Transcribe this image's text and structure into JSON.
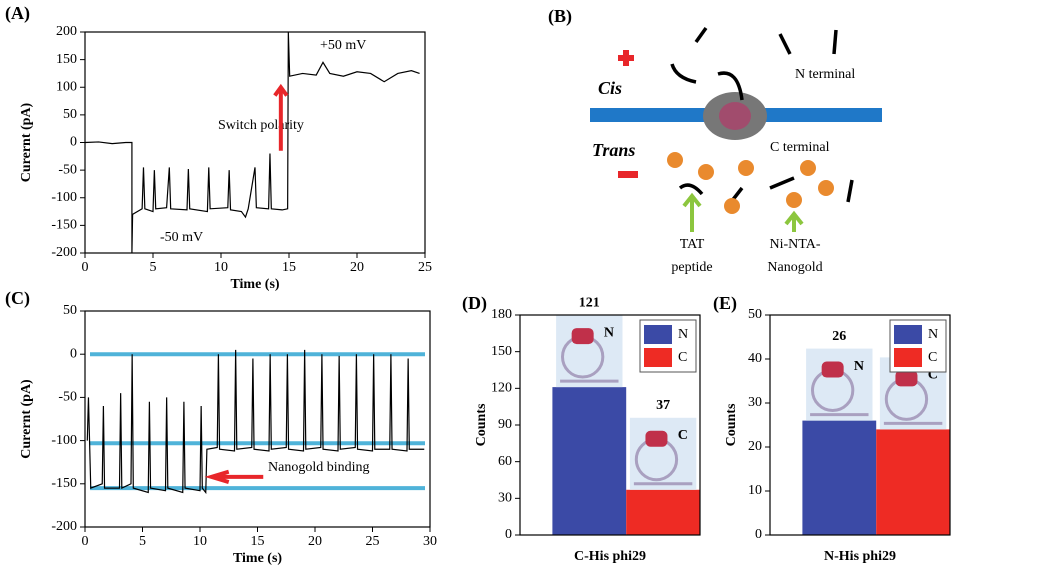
{
  "chart_data": [
    {
      "type": "line",
      "panel": "(A)",
      "xlabel": "Time (s)",
      "ylabel": "Curernt (pA)",
      "xlim": [
        0,
        25
      ],
      "xticks": [
        0,
        5,
        10,
        15,
        20,
        25
      ],
      "ylim": [
        -200,
        200
      ],
      "yticks": [
        -200,
        -150,
        -100,
        -50,
        0,
        50,
        100,
        150,
        200
      ],
      "color": "#000000",
      "x": [
        0,
        1,
        2,
        3,
        3.45,
        3.45,
        3.5,
        4.2,
        4.3,
        4.4,
        5,
        5.1,
        5.2,
        6,
        6.2,
        6.3,
        7.5,
        7.6,
        7.7,
        9,
        9.1,
        9.2,
        10.5,
        10.6,
        10.7,
        11.5,
        11.8,
        12,
        12.5,
        12.6,
        13.5,
        13.6,
        13.7,
        14.5,
        14.9,
        14.95,
        15.05,
        16,
        17,
        17.5,
        18,
        19,
        20,
        21,
        22,
        23,
        24,
        24.6
      ],
      "values": [
        0,
        1,
        -2,
        0,
        0,
        -200,
        -130,
        -120,
        -45,
        -120,
        -125,
        -50,
        -120,
        -118,
        -45,
        -120,
        -122,
        -48,
        -120,
        -125,
        -45,
        -120,
        -118,
        -50,
        -122,
        -125,
        -135,
        -120,
        -45,
        -118,
        -120,
        -20,
        -120,
        -122,
        -120,
        200,
        120,
        125,
        122,
        145,
        125,
        120,
        128,
        125,
        110,
        125,
        130,
        125
      ],
      "annotations": [
        "+50 mV",
        "-50 mV",
        "Switch polarity"
      ]
    },
    {
      "type": "line",
      "panel": "(C)",
      "xlabel": "Time (s)",
      "ylabel": "Curernt (pA)",
      "xlim": [
        0,
        30
      ],
      "xticks": [
        0,
        5,
        10,
        15,
        20,
        25,
        30
      ],
      "ylim": [
        -200,
        50
      ],
      "yticks": [
        -200,
        -150,
        -100,
        -50,
        0,
        50
      ],
      "color": "#000000",
      "x": [
        0.2,
        0.3,
        0.5,
        1.5,
        1.6,
        1.7,
        3,
        3.1,
        3.2,
        4,
        4.1,
        4.2,
        5.5,
        5.6,
        5.7,
        7,
        7.1,
        7.2,
        8.5,
        8.6,
        8.7,
        10,
        10.1,
        10.2,
        10.5,
        10.6,
        11.5,
        11.6,
        11.7,
        13,
        13.1,
        13.2,
        14.5,
        14.6,
        14.7,
        16,
        16.1,
        16.2,
        17.5,
        17.6,
        17.7,
        19,
        19.1,
        19.2,
        20.5,
        20.6,
        20.7,
        22,
        22.1,
        22.2,
        23.5,
        23.6,
        23.7,
        25,
        25.1,
        25.2,
        26.5,
        26.6,
        26.7,
        28,
        28.1,
        28.2,
        29.5
      ],
      "values": [
        -100,
        -50,
        -155,
        -150,
        -60,
        -155,
        -155,
        -45,
        -155,
        -150,
        0,
        -155,
        -160,
        -55,
        -155,
        -158,
        -50,
        -155,
        -160,
        -55,
        -155,
        -158,
        -60,
        -155,
        -160,
        -110,
        -108,
        0,
        -110,
        -112,
        5,
        -110,
        -108,
        -5,
        -110,
        -112,
        0,
        -110,
        -108,
        0,
        -110,
        -112,
        5,
        -110,
        -108,
        0,
        -110,
        -112,
        -2,
        -110,
        -108,
        0,
        -110,
        -112,
        0,
        -110,
        -110,
        0,
        -110,
        -112,
        -5,
        -110,
        -110
      ],
      "reference_lines": [
        0,
        -103,
        -155
      ],
      "reference_color": "#4fb3d9",
      "annotations": [
        "Nanogold binding"
      ]
    },
    {
      "type": "bar",
      "panel": "(D)",
      "xlabel": "C-His phi29",
      "ylabel": "Counts",
      "categories": [
        "N",
        "C"
      ],
      "values": [
        121,
        37
      ],
      "colors": [
        "#3b4aa6",
        "#ee2b24"
      ],
      "ylim": [
        0,
        180
      ],
      "yticks": [
        0,
        30,
        60,
        90,
        120,
        150,
        180
      ]
    },
    {
      "type": "bar",
      "panel": "(E)",
      "xlabel": "N-His phi29",
      "ylabel": "Counts",
      "categories": [
        "N",
        "C"
      ],
      "values": [
        26,
        24
      ],
      "colors": [
        "#3b4aa6",
        "#ee2b24"
      ],
      "ylim": [
        0,
        50
      ],
      "yticks": [
        0,
        10,
        20,
        30,
        40,
        50
      ]
    }
  ],
  "diagram": {
    "panel": "(B)",
    "cis": "Cis",
    "trans": "Trans",
    "n_terminal": "N terminal",
    "c_terminal": "C terminal",
    "tat": [
      "TAT",
      "peptide"
    ],
    "nanogold": [
      "Ni-NTA-",
      "Nanogold"
    ]
  }
}
